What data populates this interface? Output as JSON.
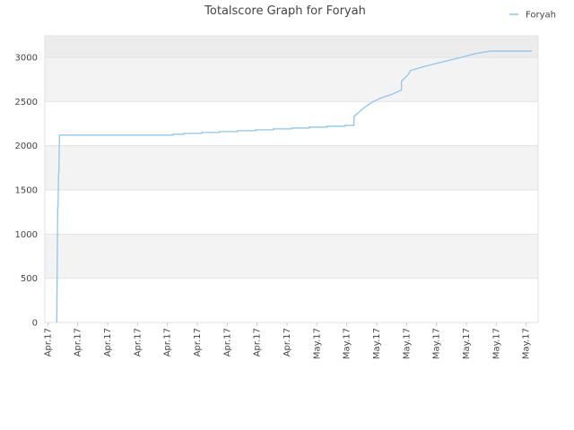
{
  "chart_data": {
    "type": "line",
    "title": "Totalscore Graph for Foryah",
    "x": [
      0.3,
      0.33,
      0.34,
      0.36,
      0.37,
      0.39,
      4.19,
      4.19,
      4.55,
      4.55,
      5.15,
      5.15,
      5.75,
      5.75,
      6.35,
      6.35,
      6.95,
      6.95,
      7.54,
      7.54,
      8.14,
      8.14,
      8.74,
      8.74,
      9.34,
      9.34,
      9.94,
      9.94,
      10.24,
      10.24,
      10.54,
      10.84,
      11.14,
      11.5,
      11.83,
      11.83,
      12.04,
      12.13,
      12.63,
      13.23,
      13.83,
      14.28,
      14.79,
      16.17,
      16.17
    ],
    "series": [
      {
        "name": "Foryah",
        "color": "#8ec6f0",
        "values": [
          0,
          1300,
          1320,
          1680,
          1700,
          2120,
          2120,
          2130,
          2130,
          2140,
          2140,
          2150,
          2150,
          2160,
          2160,
          2170,
          2170,
          2180,
          2180,
          2190,
          2190,
          2200,
          2200,
          2210,
          2210,
          2220,
          2220,
          2230,
          2230,
          2330,
          2420,
          2490,
          2540,
          2580,
          2630,
          2730,
          2800,
          2850,
          2900,
          2950,
          3000,
          3040,
          3070,
          3070,
          3080
        ]
      }
    ],
    "xlim": [
      -0.1,
      16.4
    ],
    "xticks": [
      {
        "value": 0,
        "label": "Apr.17"
      },
      {
        "value": 1,
        "label": "Apr.17"
      },
      {
        "value": 2,
        "label": "Apr.17"
      },
      {
        "value": 3,
        "label": "Apr.17"
      },
      {
        "value": 4,
        "label": "Apr.17"
      },
      {
        "value": 5,
        "label": "Apr.17"
      },
      {
        "value": 6,
        "label": "Apr.17"
      },
      {
        "value": 7,
        "label": "Apr.17"
      },
      {
        "value": 8,
        "label": "Apr.17"
      },
      {
        "value": 9,
        "label": "May.17"
      },
      {
        "value": 10,
        "label": "May.17"
      },
      {
        "value": 11,
        "label": "May.17"
      },
      {
        "value": 12,
        "label": "May.17"
      },
      {
        "value": 13,
        "label": "May.17"
      },
      {
        "value": 14,
        "label": "May.17"
      },
      {
        "value": 15,
        "label": "May.17"
      },
      {
        "value": 16,
        "label": "May.17"
      }
    ],
    "ylim": [
      0,
      3243
    ],
    "yticks": [
      0,
      500,
      1000,
      1500,
      2000,
      2500,
      3000
    ],
    "grid": true,
    "legend": "top-right"
  }
}
